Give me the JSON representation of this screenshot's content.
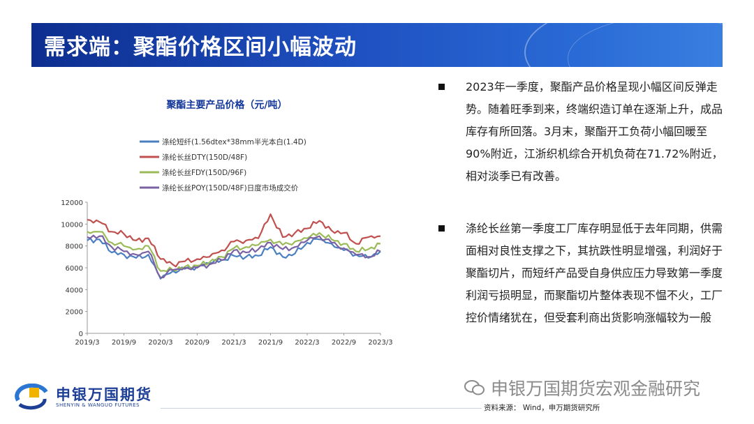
{
  "header": {
    "title": "需求端：聚酯价格区间小幅波动"
  },
  "chart_data": {
    "type": "line",
    "title": "聚酯主要产品价格（元/吨）",
    "ylim": [
      0,
      12000
    ],
    "yticks": [
      0,
      2000,
      4000,
      6000,
      8000,
      10000,
      12000
    ],
    "xticks": [
      "2019/3",
      "2019/9",
      "2020/3",
      "2020/9",
      "2021/3",
      "2021/9",
      "2022/3",
      "2022/9",
      "2023/3"
    ],
    "x": [
      "2019/3",
      "2019/5",
      "2019/7",
      "2019/9",
      "2019/11",
      "2020/1",
      "2020/3",
      "2020/5",
      "2020/7",
      "2020/9",
      "2020/11",
      "2021/1",
      "2021/3",
      "2021/5",
      "2021/7",
      "2021/9",
      "2021/11",
      "2022/1",
      "2022/3",
      "2022/5",
      "2022/7",
      "2022/9",
      "2022/11",
      "2023/1",
      "2023/3"
    ],
    "series": [
      {
        "name": "涤纶短纤(1.56dtex*38mm半光本白(1.4D)",
        "color": "#4a7fc1",
        "values": [
          8500,
          8600,
          7400,
          7200,
          6900,
          7200,
          5000,
          5700,
          5900,
          6100,
          6400,
          6700,
          7100,
          7000,
          7100,
          7900,
          7000,
          7300,
          8300,
          8600,
          8200,
          7600,
          7200,
          6900,
          7500
        ]
      },
      {
        "name": "涤纶长丝DTY(150D/48F)",
        "color": "#c0504d",
        "values": [
          10400,
          10200,
          9300,
          9100,
          8500,
          8700,
          6800,
          6300,
          6600,
          6800,
          7000,
          7600,
          8400,
          8500,
          8700,
          10900,
          8800,
          9200,
          9600,
          10300,
          9400,
          9200,
          8200,
          8800,
          8900
        ]
      },
      {
        "name": "涤纶长丝FDY(150D/96F)",
        "color": "#9bbb59",
        "values": [
          9300,
          9300,
          8300,
          8000,
          7700,
          8000,
          5700,
          5800,
          6100,
          6200,
          6500,
          7000,
          7800,
          7900,
          8100,
          8600,
          8100,
          8400,
          8700,
          9200,
          8600,
          8200,
          7500,
          7700,
          8200
        ]
      },
      {
        "name": "涤纶长丝POY(150D/48F)日度市场成交价",
        "color": "#7a62a3",
        "values": [
          8800,
          8900,
          7900,
          7500,
          7200,
          7500,
          5100,
          5800,
          6000,
          6000,
          6300,
          6700,
          7600,
          7400,
          7700,
          8300,
          7700,
          7900,
          8500,
          8900,
          8300,
          7800,
          7200,
          7000,
          7500
        ]
      }
    ]
  },
  "bullets": [
    "2023年一季度，聚酯产品价格呈现小幅区间反弹走势。随着旺季到来，终端织造订单在逐渐上升，成品库存有所回落。3月末，聚酯开工负荷小幅回暖至90%附近，江浙织机综合开机负荷在71.72%附近，相对淡季已有改善。",
    "涤纶长丝第一季度工厂库存明显低于去年同期，供需面相对良性支撑之下，其抗跌性明显增强，利润好于聚酯切片，而短纤产品受自身供应压力导致第一季度利润亏损明显，而聚酯切片整体表现不愠不火，工厂控价情绪犹在，但受套利商出货影响涨幅较为一般"
  ],
  "source": "资料来源： Wind，申万期货研究所",
  "watermark": "申银万国期货宏观金融研究",
  "logo": {
    "name": "申银万国期货",
    "sub": "SHENYIN & WANGUO FUTURES"
  },
  "colors": {
    "title_bar": "#1e4fbf",
    "chart_title": "#14379a"
  }
}
